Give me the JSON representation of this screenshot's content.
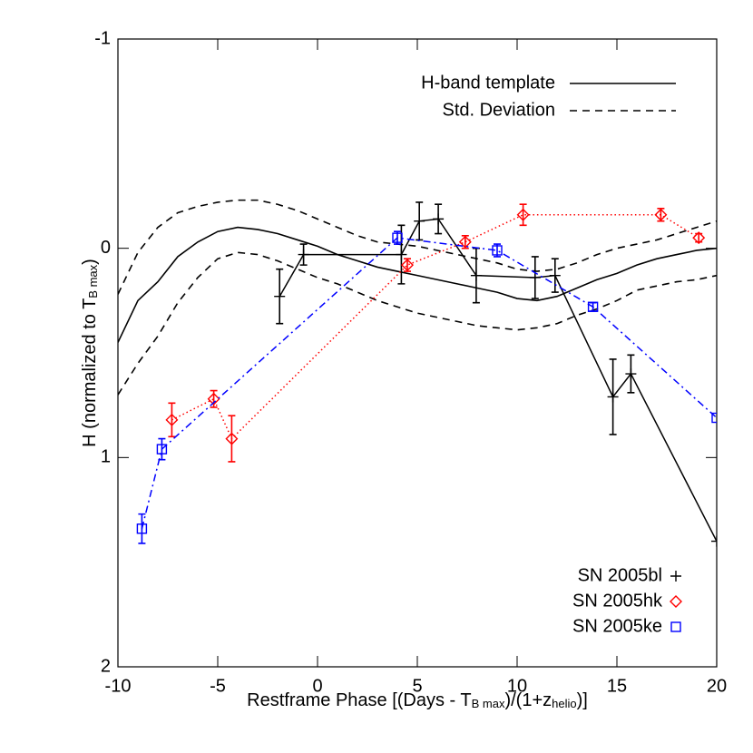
{
  "chart_data": {
    "type": "line",
    "xlabel": [
      "Restframe Phase [(Days - T",
      "B max",
      ")/(1+z",
      "helio",
      ")]"
    ],
    "ylabel": [
      "H (normalized to T",
      "B max",
      ")"
    ],
    "xlim": [
      -10,
      20
    ],
    "xticks": [
      -10,
      -5,
      0,
      5,
      10,
      15,
      20
    ],
    "ylim": [
      -1,
      2
    ],
    "yticks": [
      -1,
      0,
      1,
      2
    ],
    "y_inverted": true,
    "templates": [
      {
        "name": "H-band template",
        "color": "#000000",
        "style": "solid",
        "x": [
          -10,
          -9,
          -8,
          -7,
          -6,
          -5,
          -4,
          -3,
          -2,
          -1,
          0,
          1,
          2,
          3,
          4,
          5,
          6,
          7,
          8,
          9,
          10,
          11,
          12,
          13,
          14,
          15,
          16,
          17,
          18,
          19,
          20
        ],
        "values": [
          0.45,
          0.25,
          0.16,
          0.04,
          -0.03,
          -0.08,
          -0.1,
          -0.09,
          -0.07,
          -0.04,
          -0.01,
          0.03,
          0.06,
          0.09,
          0.11,
          0.13,
          0.15,
          0.17,
          0.19,
          0.21,
          0.24,
          0.25,
          0.23,
          0.19,
          0.15,
          0.12,
          0.08,
          0.05,
          0.03,
          0.01,
          0.0
        ]
      },
      {
        "name": "Std. Deviation",
        "color": "#000000",
        "style": "dashed",
        "x": [
          -10,
          -9,
          -8,
          -7,
          -6,
          -5,
          -4,
          -3,
          -2,
          -1,
          0,
          1,
          2,
          3,
          4,
          5,
          6,
          7,
          8,
          9,
          10,
          11,
          12,
          13,
          14,
          15,
          16,
          17,
          18,
          19,
          20
        ],
        "values": [
          0.22,
          0.02,
          -0.1,
          -0.17,
          -0.2,
          -0.22,
          -0.23,
          -0.23,
          -0.21,
          -0.18,
          -0.14,
          -0.1,
          -0.06,
          -0.03,
          -0.02,
          -0.01,
          0.01,
          0.03,
          0.05,
          0.07,
          0.1,
          0.11,
          0.1,
          0.07,
          0.03,
          0,
          -0.02,
          -0.04,
          -0.07,
          -0.1,
          -0.13
        ]
      },
      {
        "color": "#000000",
        "style": "dashed",
        "x": [
          -10,
          -9,
          -8,
          -7,
          -6,
          -5,
          -4,
          -3,
          -2,
          -1,
          0,
          1,
          2,
          3,
          4,
          5,
          6,
          7,
          8,
          9,
          10,
          11,
          12,
          13,
          14,
          15,
          16,
          17,
          18,
          19,
          20
        ],
        "values": [
          0.7,
          0.55,
          0.42,
          0.26,
          0.14,
          0.05,
          0.02,
          0.03,
          0.06,
          0.1,
          0.14,
          0.17,
          0.21,
          0.25,
          0.28,
          0.31,
          0.33,
          0.35,
          0.37,
          0.38,
          0.39,
          0.38,
          0.36,
          0.32,
          0.29,
          0.25,
          0.2,
          0.18,
          0.16,
          0.15,
          0.13
        ]
      }
    ],
    "series": [
      {
        "name": "SN 2005bl",
        "color": "#000000",
        "marker": "plus",
        "style": "solid",
        "x": [
          -1.9,
          -0.7,
          4.2,
          5.1,
          6.05,
          7.95,
          10.9,
          11.9,
          14.8,
          15.7,
          20
        ],
        "values": [
          0.23,
          0.03,
          0.03,
          -0.13,
          -0.14,
          0.13,
          0.14,
          0.13,
          0.71,
          0.6,
          1.4
        ],
        "errors": [
          0.13,
          0.05,
          0.14,
          0.09,
          0.07,
          0.13,
          0.1,
          0.08,
          0.18,
          0.09,
          null
        ]
      },
      {
        "name": "SN 2005hk",
        "color": "#ff0000",
        "marker": "diamond",
        "style": "dotted",
        "x": [
          -7.3,
          -5.2,
          -4.3,
          4.5,
          7.4,
          10.3,
          17.2,
          19.1
        ],
        "values": [
          0.82,
          0.72,
          0.91,
          0.08,
          -0.03,
          -0.16,
          -0.16,
          -0.05
        ],
        "errors": [
          0.08,
          0.04,
          0.11,
          0.03,
          0.03,
          0.05,
          0.03,
          0.02
        ]
      },
      {
        "name": "SN 2005ke",
        "color": "#0000ff",
        "marker": "square",
        "style": "dashdot",
        "x": [
          -8.8,
          -7.8,
          4,
          9,
          13.8,
          20
        ],
        "values": [
          1.34,
          0.96,
          -0.05,
          0.01,
          0.28,
          0.81
        ],
        "errors": [
          0.07,
          0.05,
          0.03,
          0.03,
          0.02,
          null
        ]
      }
    ]
  }
}
